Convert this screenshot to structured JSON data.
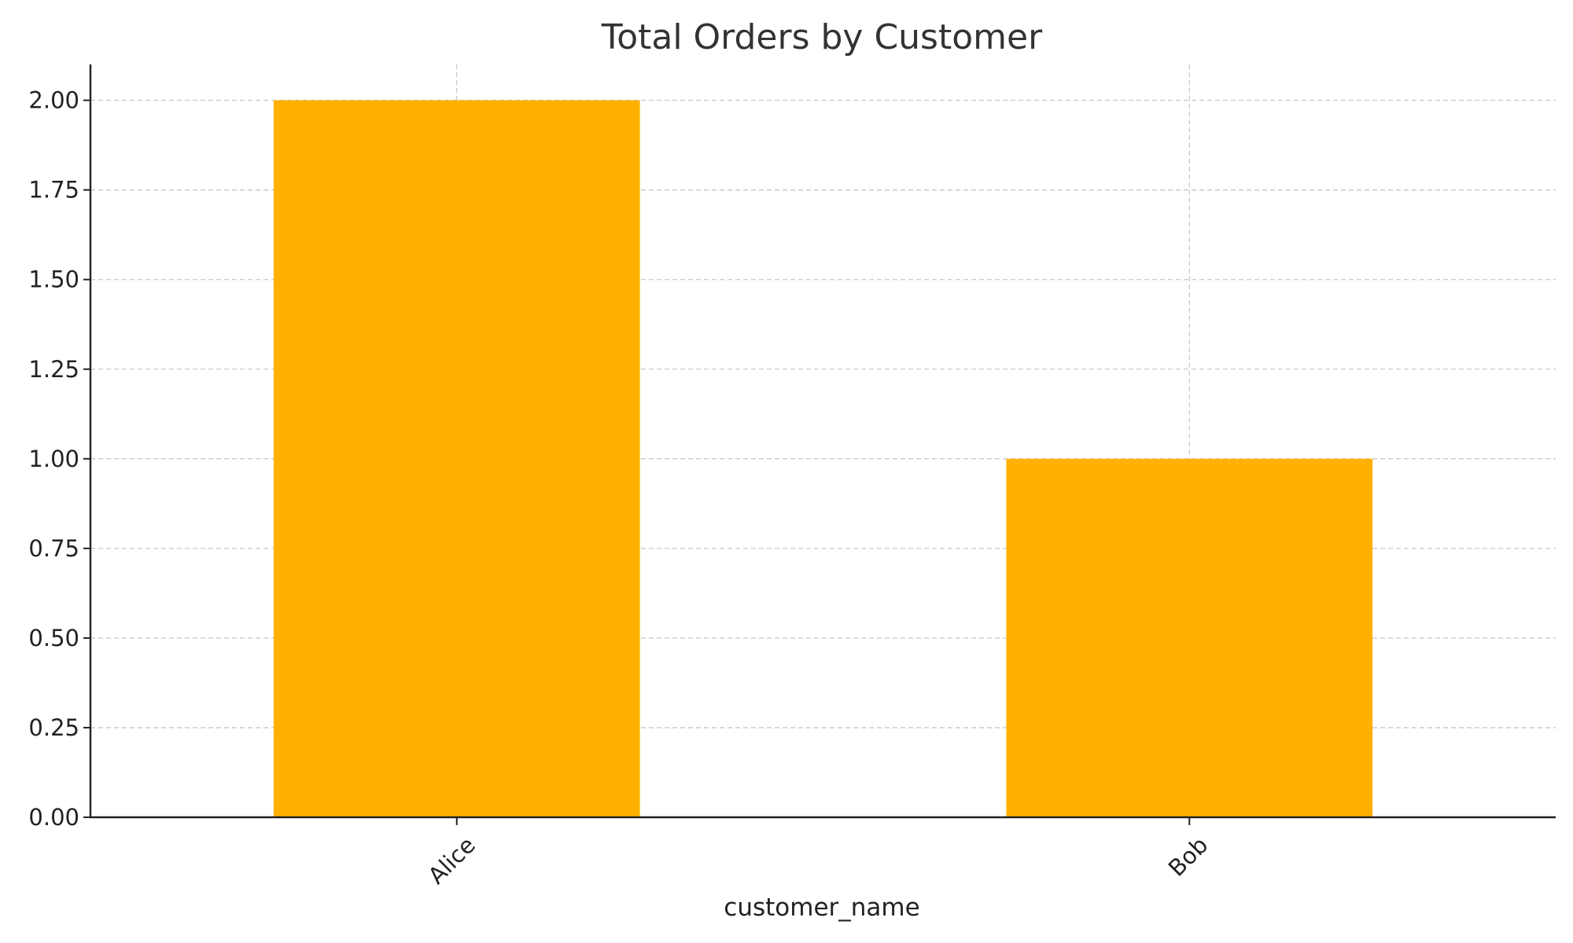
{
  "chart_data": {
    "type": "bar",
    "title": "Total Orders by Customer",
    "xlabel": "customer_name",
    "ylabel": "",
    "categories": [
      "Alice",
      "Bob"
    ],
    "values": [
      2,
      1
    ],
    "ylim": [
      0,
      2.1
    ],
    "yticks": [
      "0.00",
      "0.25",
      "0.50",
      "0.75",
      "1.00",
      "1.25",
      "1.50",
      "1.75",
      "2.00"
    ],
    "bar_color": "#FFB000",
    "grid": true,
    "legend": "none"
  }
}
